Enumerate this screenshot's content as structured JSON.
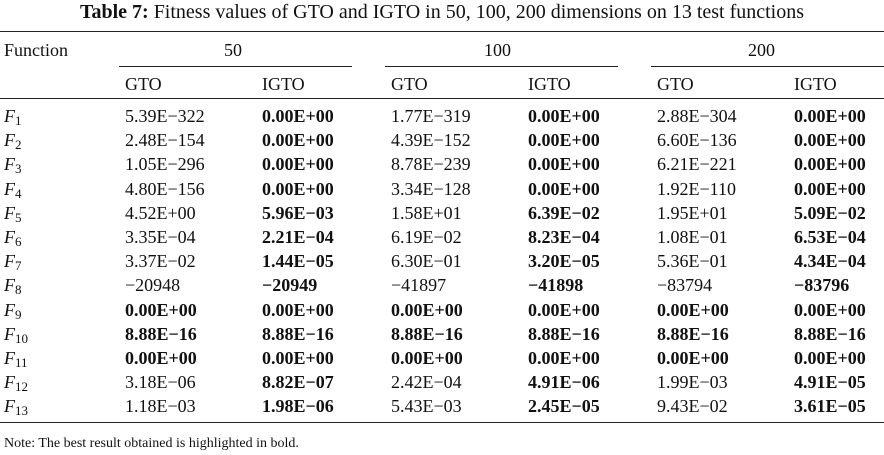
{
  "caption": {
    "label": "Table 7:",
    "text": "Fitness values of GTO and IGTO in 50, 100, 200 dimensions on 13 test functions"
  },
  "header": {
    "function": "Function",
    "dims": [
      "50",
      "100",
      "200"
    ],
    "algorithms": [
      "GTO",
      "IGTO",
      "GTO",
      "IGTO",
      "GTO",
      "IGTO"
    ]
  },
  "rows": [
    {
      "f": "F",
      "sub": "1",
      "values": [
        "5.39E−322",
        "0.00E+00",
        "1.77E−319",
        "0.00E+00",
        "2.88E−304",
        "0.00E+00"
      ],
      "bold": [
        false,
        true,
        false,
        true,
        false,
        true
      ]
    },
    {
      "f": "F",
      "sub": "2",
      "values": [
        "2.48E−154",
        "0.00E+00",
        "4.39E−152",
        "0.00E+00",
        "6.60E−136",
        "0.00E+00"
      ],
      "bold": [
        false,
        true,
        false,
        true,
        false,
        true
      ]
    },
    {
      "f": "F",
      "sub": "3",
      "values": [
        "1.05E−296",
        "0.00E+00",
        "8.78E−239",
        "0.00E+00",
        "6.21E−221",
        "0.00E+00"
      ],
      "bold": [
        false,
        true,
        false,
        true,
        false,
        true
      ]
    },
    {
      "f": "F",
      "sub": "4",
      "values": [
        "4.80E−156",
        "0.00E+00",
        "3.34E−128",
        "0.00E+00",
        "1.92E−110",
        "0.00E+00"
      ],
      "bold": [
        false,
        true,
        false,
        true,
        false,
        true
      ]
    },
    {
      "f": "F",
      "sub": "5",
      "values": [
        "4.52E+00",
        "5.96E−03",
        "1.58E+01",
        "6.39E−02",
        "1.95E+01",
        "5.09E−02"
      ],
      "bold": [
        false,
        true,
        false,
        true,
        false,
        true
      ]
    },
    {
      "f": "F",
      "sub": "6",
      "values": [
        "3.35E−04",
        "2.21E−04",
        "6.19E−02",
        "8.23E−04",
        "1.08E−01",
        "6.53E−04"
      ],
      "bold": [
        false,
        true,
        false,
        true,
        false,
        true
      ]
    },
    {
      "f": "F",
      "sub": "7",
      "values": [
        "3.37E−02",
        "1.44E−05",
        "6.30E−01",
        "3.20E−05",
        "5.36E−01",
        "4.34E−04"
      ],
      "bold": [
        false,
        true,
        false,
        true,
        false,
        true
      ]
    },
    {
      "f": "F",
      "sub": "8",
      "values": [
        "−20948",
        "−20949",
        "−41897",
        "−41898",
        "−83794",
        "−83796"
      ],
      "bold": [
        false,
        true,
        false,
        true,
        false,
        true
      ]
    },
    {
      "f": "F",
      "sub": "9",
      "values": [
        "0.00E+00",
        "0.00E+00",
        "0.00E+00",
        "0.00E+00",
        "0.00E+00",
        "0.00E+00"
      ],
      "bold": [
        true,
        true,
        true,
        true,
        true,
        true
      ]
    },
    {
      "f": "F",
      "sub": "10",
      "values": [
        "8.88E−16",
        "8.88E−16",
        "8.88E−16",
        "8.88E−16",
        "8.88E−16",
        "8.88E−16"
      ],
      "bold": [
        true,
        true,
        true,
        true,
        true,
        true
      ]
    },
    {
      "f": "F",
      "sub": "11",
      "values": [
        "0.00E+00",
        "0.00E+00",
        "0.00E+00",
        "0.00E+00",
        "0.00E+00",
        "0.00E+00"
      ],
      "bold": [
        true,
        true,
        true,
        true,
        true,
        true
      ]
    },
    {
      "f": "F",
      "sub": "12",
      "values": [
        "3.18E−06",
        "8.82E−07",
        "2.42E−04",
        "4.91E−06",
        "1.99E−03",
        "4.91E−05"
      ],
      "bold": [
        false,
        true,
        false,
        true,
        false,
        true
      ]
    },
    {
      "f": "F",
      "sub": "13",
      "values": [
        "1.18E−03",
        "1.98E−06",
        "5.43E−03",
        "2.45E−05",
        "9.43E−02",
        "3.61E−05"
      ],
      "bold": [
        false,
        true,
        false,
        true,
        false,
        true
      ]
    }
  ],
  "note": "Note: The best result obtained is highlighted in bold."
}
